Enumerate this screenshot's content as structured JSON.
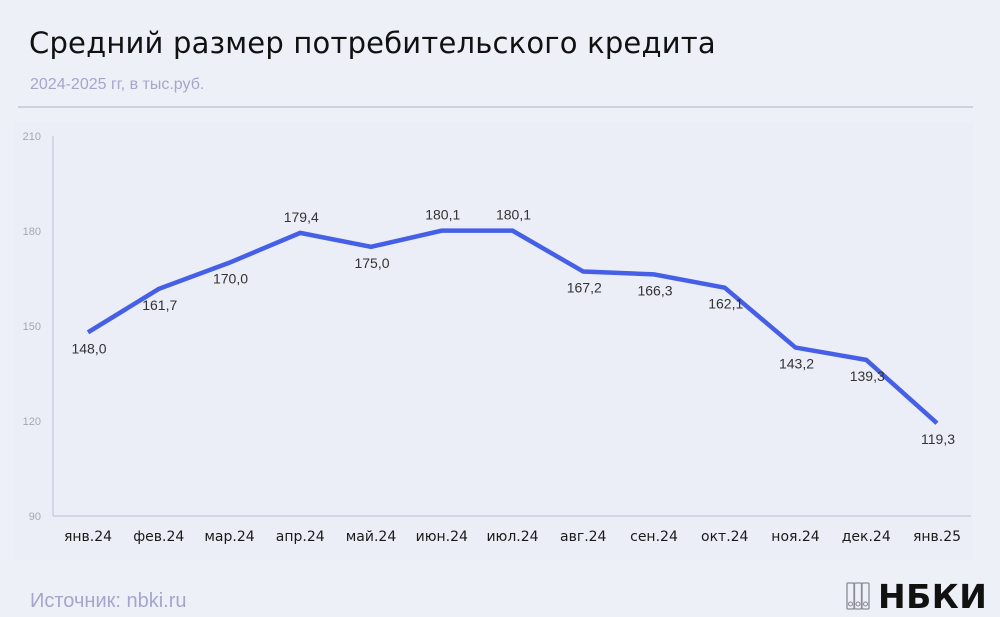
{
  "header": {
    "title": "Средний размер потребительского кредита",
    "subtitle": "2024-2025 гг, в тыс.руб."
  },
  "footer": {
    "source": "Источник: nbki.ru",
    "logo_text": "НБКИ"
  },
  "colors": {
    "line": "#4560e6",
    "axis": "#c5c8e0",
    "tick_label": "#a4a6b8",
    "data_label": "#333333",
    "category_label": "#1a1a1a",
    "background": "#eef0f7",
    "panel": "#ebeef6"
  },
  "chart_data": {
    "type": "line",
    "title": "Средний размер потребительского кредита",
    "subtitle": "2024-2025 гг, в тыс.руб.",
    "xlabel": "",
    "ylabel": "",
    "ylim": [
      90,
      210
    ],
    "yticks": [
      90,
      120,
      150,
      180,
      210
    ],
    "grid": false,
    "legend": "none",
    "categories": [
      "янв.24",
      "фев.24",
      "мар.24",
      "апр.24",
      "май.24",
      "июн.24",
      "июл.24",
      "авг.24",
      "сен.24",
      "окт.24",
      "ноя.24",
      "дек.24",
      "янв.25"
    ],
    "series": [
      {
        "name": "Средний размер потребительского кредита",
        "values": [
          148.0,
          161.7,
          170.0,
          179.4,
          175.0,
          180.1,
          180.1,
          167.2,
          166.3,
          162.1,
          143.2,
          139.3,
          119.3
        ],
        "labels": [
          "148,0",
          "161,7",
          "170,0",
          "179,4",
          "175,0",
          "180,1",
          "180,1",
          "167,2",
          "166,3",
          "162,1",
          "143,2",
          "139,3",
          "119,3"
        ],
        "label_positions": [
          "below",
          "below",
          "below",
          "above",
          "below",
          "above",
          "above",
          "below",
          "below",
          "below",
          "below",
          "below",
          "below"
        ]
      }
    ]
  }
}
